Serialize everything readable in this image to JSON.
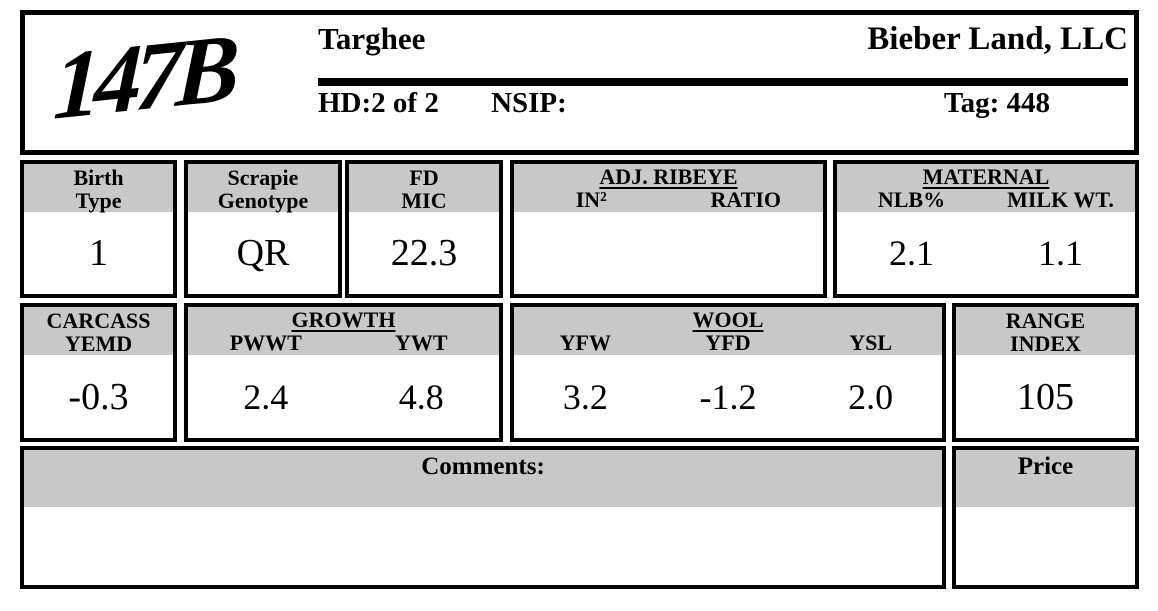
{
  "header": {
    "lot": "147B",
    "breed": "Targhee",
    "owner": "Bieber Land, LLC",
    "hd": "HD:2 of 2",
    "nsip": "NSIP:",
    "tag": "Tag: 448"
  },
  "stats": {
    "birth_type": {
      "label1": "Birth",
      "label2": "Type",
      "value": "1"
    },
    "scrapie": {
      "label1": "Scrapie",
      "label2": "Genotype",
      "value": "QR"
    },
    "fd_mic": {
      "label1": "FD",
      "label2": "MIC",
      "value": "22.3"
    },
    "adj_ribeye": {
      "title": "ADJ. RIBEYE",
      "col1": "IN²",
      "col2": "RATIO",
      "val1": "",
      "val2": ""
    },
    "maternal": {
      "title": "MATERNAL",
      "col1": "NLB%",
      "col2": "MILK WT.",
      "val1": "2.1",
      "val2": "1.1"
    },
    "carcass": {
      "label1": "CARCASS",
      "label2": "YEMD",
      "value": "-0.3"
    },
    "growth": {
      "title": "GROWTH",
      "col1": "PWWT",
      "col2": "YWT",
      "val1": "2.4",
      "val2": "4.8"
    },
    "wool": {
      "title": "WOOL",
      "col1": "YFW",
      "col2": "YFD",
      "col3": "YSL",
      "val1": "3.2",
      "val2": "-1.2",
      "val3": "2.0"
    },
    "range_index": {
      "label1": "RANGE",
      "label2": "INDEX",
      "value": "105"
    }
  },
  "footer": {
    "comments_label": "Comments:",
    "comments_value": "",
    "price_label": "Price",
    "price_value": ""
  },
  "colors": {
    "band_gray": "#c8c8c8",
    "border_black": "#000000"
  }
}
